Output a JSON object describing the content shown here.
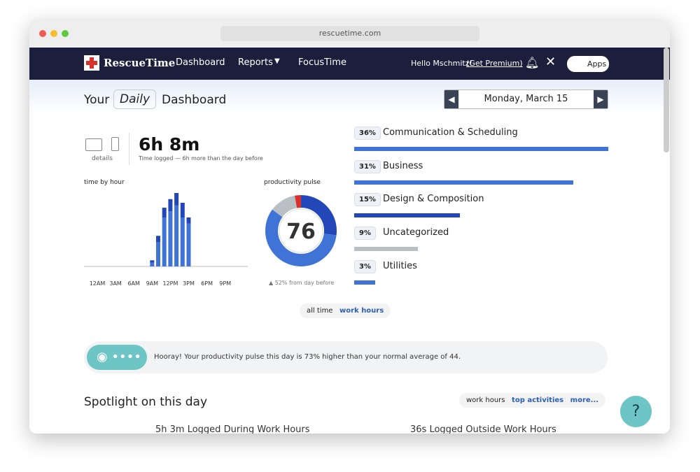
{
  "browser": {
    "url": "rescuetime.com"
  },
  "nav": {
    "brand": "RescueTime",
    "links": [
      "Dashboard",
      "Reports",
      "FocusTime"
    ],
    "greeting": "Hello Mschmitz!",
    "premium": "(Get Premium)",
    "apps": "Apps"
  },
  "header": {
    "your": "Your",
    "period": "Daily",
    "dashboard": "Dashboard",
    "date": "Monday, March 15"
  },
  "summary": {
    "details": "details",
    "total": "6h 8m",
    "note": "Time logged — 6h more than the day before"
  },
  "time_by_hour": {
    "title": "time by hour",
    "labels": [
      "12AM",
      "3AM",
      "6AM",
      "9AM",
      "12PM",
      "3PM",
      "6PM",
      "9PM"
    ],
    "series": [
      {
        "color": "#3f74d6",
        "values": [
          0,
          0,
          0,
          0,
          0,
          0,
          0,
          0,
          0,
          3,
          20,
          40,
          45,
          50,
          40,
          35,
          0,
          0,
          0,
          0,
          0,
          0,
          0,
          0
        ]
      },
      {
        "color": "#2346b8",
        "values": [
          0,
          0,
          0,
          0,
          0,
          0,
          0,
          0,
          0,
          2,
          5,
          8,
          10,
          10,
          12,
          5,
          0,
          0,
          0,
          0,
          0,
          0,
          0,
          0
        ]
      }
    ]
  },
  "pulse": {
    "title": "productivity pulse",
    "score": 76,
    "change": "52% from day before",
    "segments": [
      {
        "color": "#2346b8",
        "value": 27
      },
      {
        "color": "#3f74d6",
        "value": 58
      },
      {
        "color": "#b9c0c4",
        "value": 12
      },
      {
        "color": "#d9322d",
        "value": 3
      }
    ]
  },
  "categories": [
    {
      "name": "Communication & Scheduling",
      "value": 36,
      "value_label": "36%",
      "color": "#3f74d6"
    },
    {
      "name": "Business",
      "value": 31,
      "value_label": "31%",
      "color": "#3f74d6"
    },
    {
      "name": "Design & Composition",
      "value": 15,
      "value_label": "15%",
      "color": "#2346b8"
    },
    {
      "name": "Uncategorized",
      "value": 9,
      "value_label": "9%",
      "color": "#b9c0c4"
    },
    {
      "name": "Utilities",
      "value": 3,
      "value_label": "3%",
      "color": "#3f74d6"
    }
  ],
  "toggle": [
    "all time",
    "work hours"
  ],
  "banner": {
    "message": "Hooray! Your productivity pulse this day is 73% higher than your normal average of 44."
  },
  "spotlight": {
    "title": "Spotlight on this day",
    "tabs": [
      "work hours",
      "top activities",
      "more..."
    ],
    "left": "5h 3m Logged During Work Hours",
    "right": "36s Logged Outside Work Hours"
  },
  "help": "?"
}
